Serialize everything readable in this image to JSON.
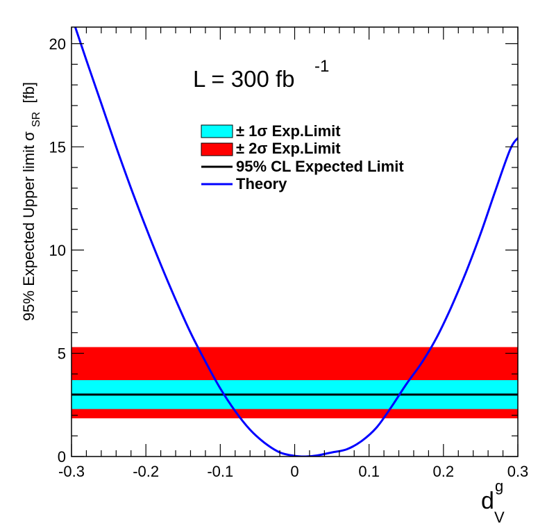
{
  "chart_data": {
    "type": "line",
    "title": "",
    "annotation": {
      "text": "L = 300 fb",
      "superscript": "-1"
    },
    "xlabel": {
      "main": "d",
      "superscript": "g",
      "subscript": "V"
    },
    "ylabel": {
      "main": "95% Expected Upper limit  σ",
      "subscript": "SR",
      "unit": "[fb]"
    },
    "xlim": [
      -0.3,
      0.3
    ],
    "ylim": [
      0,
      20.8
    ],
    "x_ticks": [
      -0.3,
      -0.2,
      -0.1,
      0,
      0.1,
      0.2,
      0.3
    ],
    "x_tick_labels": [
      "-0.3",
      "-0.2",
      "-0.1",
      "0",
      "0.1",
      "0.2",
      "0.3"
    ],
    "y_ticks": [
      0,
      5,
      10,
      15,
      20
    ],
    "y_tick_labels": [
      "0",
      "5",
      "10",
      "15",
      "20"
    ],
    "grid": false,
    "legend_position": "top-center",
    "bands": {
      "two_sigma": {
        "label": "± 2σ Exp.Limit",
        "low": 1.85,
        "high": 5.3,
        "color": "#ff0000"
      },
      "one_sigma": {
        "label": "± 1σ Exp.Limit",
        "low": 2.3,
        "high": 3.7,
        "color": "#00ffff"
      }
    },
    "expected_limit": {
      "label": "95% CL Expected Limit",
      "value": 3.0,
      "color": "#000000"
    },
    "series": [
      {
        "name": "Theory",
        "color": "#0000ff",
        "x": [
          -0.295,
          -0.28,
          -0.26,
          -0.24,
          -0.22,
          -0.2,
          -0.18,
          -0.16,
          -0.14,
          -0.12,
          -0.1,
          -0.08,
          -0.06,
          -0.04,
          -0.02,
          0,
          0.015,
          0.03,
          0.05,
          0.07,
          0.09,
          0.11,
          0.13,
          0.15,
          0.17,
          0.19,
          0.21,
          0.23,
          0.25,
          0.27,
          0.29,
          0.302
        ],
        "y": [
          20.8,
          19.2,
          17.1,
          15.0,
          13.0,
          11.1,
          9.3,
          7.6,
          6.0,
          4.6,
          3.3,
          2.2,
          1.3,
          0.65,
          0.2,
          0.03,
          0.0,
          0.05,
          0.2,
          0.35,
          0.75,
          1.4,
          2.4,
          3.5,
          4.5,
          5.7,
          7.2,
          8.9,
          10.8,
          12.9,
          14.9,
          15.5
        ]
      }
    ],
    "legend": [
      {
        "label": "± 1σ Exp.Limit",
        "kind": "box",
        "color": "#00ffff"
      },
      {
        "label": "± 2σ Exp.Limit",
        "kind": "box",
        "color": "#ff0000"
      },
      {
        "label": "95% CL Expected Limit",
        "kind": "line",
        "color": "#000000"
      },
      {
        "label": "Theory",
        "kind": "line",
        "color": "#0000ff"
      }
    ]
  }
}
